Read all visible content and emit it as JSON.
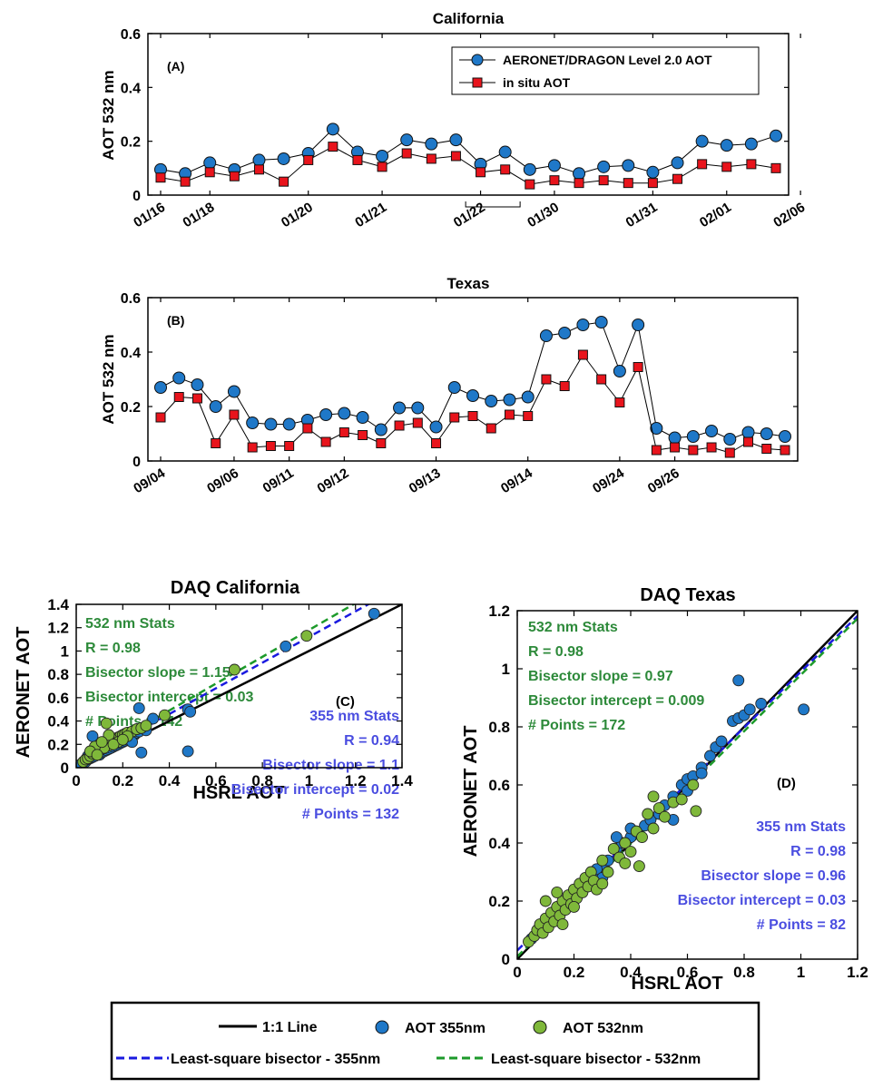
{
  "colors": {
    "aeronet": "#1f78c8",
    "insitu": "#e8141c",
    "ls355": "#1a1ae0",
    "ls532": "#1c9a2a",
    "green_pts": "#7fb83a",
    "stat532": "#2d8a3a",
    "stat355": "#4a4de0",
    "one_to_one": "#000000"
  },
  "legend_bottom": {
    "one_to_one": "1:1 Line",
    "aot355": "AOT 355nm",
    "aot532": "AOT 532nm",
    "ls355": "Least-square bisector - 355nm",
    "ls532": "Least-square bisector - 532nm"
  },
  "chart_data": [
    {
      "type": "line",
      "title": "California",
      "panel_label": "(A)",
      "ylabel": "AOT 532 nm",
      "ylim": [
        0,
        0.6
      ],
      "yticks": [
        "0",
        "0.2",
        "0.4",
        "0.6"
      ],
      "xtick_labels": [
        "01/16",
        "01/18",
        "01/20",
        "01/21",
        "01/22",
        "01/30",
        "01/31",
        "02/01",
        "02/06"
      ],
      "xtick_index": [
        0,
        2,
        6,
        9,
        13,
        16,
        20,
        23,
        26
      ],
      "legend": [
        "AERONET/DRAGON Level 2.0 AOT",
        "in situ AOT"
      ],
      "series": [
        {
          "name": "AERONET/DRAGON Level 2.0 AOT",
          "marker": "circle",
          "values": [
            0.095,
            0.08,
            0.12,
            0.095,
            0.13,
            0.135,
            0.155,
            0.245,
            0.16,
            0.145,
            0.205,
            0.19,
            0.205,
            0.115,
            0.16,
            0.095,
            0.11,
            0.08,
            0.105,
            0.11,
            0.085,
            0.12,
            0.2,
            0.185,
            0.19,
            0.22
          ]
        },
        {
          "name": "in situ AOT",
          "marker": "square",
          "values": [
            0.065,
            0.05,
            0.085,
            0.07,
            0.095,
            0.05,
            0.13,
            0.18,
            0.13,
            0.105,
            0.155,
            0.135,
            0.145,
            0.085,
            0.095,
            0.04,
            0.055,
            0.045,
            0.055,
            0.045,
            0.045,
            0.06,
            0.115,
            0.105,
            0.115,
            0.1
          ]
        }
      ]
    },
    {
      "type": "line",
      "title": "Texas",
      "panel_label": "(B)",
      "ylabel": "AOT 532 nm",
      "ylim": [
        0,
        0.6
      ],
      "yticks": [
        "0",
        "0.2",
        "0.4",
        "0.6"
      ],
      "xtick_labels": [
        "09/04",
        "09/06",
        "09/11",
        "09/12",
        "09/13",
        "09/14",
        "09/24",
        "09/26"
      ],
      "xtick_index": [
        0,
        4,
        7,
        10,
        15,
        20,
        25,
        28
      ],
      "series": [
        {
          "name": "AERONET/DRAGON Level 2.0 AOT",
          "marker": "circle",
          "values": [
            0.27,
            0.305,
            0.28,
            0.2,
            0.255,
            0.14,
            0.135,
            0.135,
            0.15,
            0.17,
            0.175,
            0.16,
            0.115,
            0.195,
            0.195,
            0.125,
            0.27,
            0.24,
            0.22,
            0.225,
            0.235,
            0.46,
            0.47,
            0.5,
            0.51,
            0.33,
            0.5,
            0.12,
            0.085,
            0.09,
            0.11,
            0.08,
            0.105,
            0.1,
            0.09
          ]
        },
        {
          "name": "in situ AOT",
          "marker": "square",
          "values": [
            0.16,
            0.235,
            0.23,
            0.065,
            0.17,
            0.05,
            0.055,
            0.055,
            0.12,
            0.07,
            0.105,
            0.095,
            0.065,
            0.13,
            0.14,
            0.065,
            0.16,
            0.165,
            0.12,
            0.17,
            0.165,
            0.3,
            0.275,
            0.39,
            0.3,
            0.215,
            0.345,
            0.04,
            0.05,
            0.04,
            0.05,
            0.03,
            0.07,
            0.045,
            0.04
          ]
        }
      ]
    },
    {
      "type": "scatter",
      "title": "DAQ California",
      "panel_label": "(C)",
      "xlabel": "HSRL AOT",
      "ylabel": "AERONET AOT",
      "xlim": [
        0,
        1.4
      ],
      "ylim": [
        0,
        1.4
      ],
      "xticks": [
        "0",
        "0.2",
        "0.4",
        "0.6",
        "0.8",
        "1",
        "1.2",
        "1.4"
      ],
      "yticks": [
        "0",
        "0.2",
        "0.4",
        "0.6",
        "0.8",
        "1",
        "1.2",
        "1.4"
      ],
      "stats532": [
        "532 nm Stats",
        "R = 0.98",
        "Bisector slope = 1.15",
        "Bisector intercept = 0.03",
        "# Points = 142"
      ],
      "stats355": [
        "355 nm Stats",
        "R = 0.94",
        "Bisector slope = 1.1",
        "Bisector intercept = 0.02",
        "# Points = 132"
      ],
      "lines": {
        "ls355": [
          1.1,
          0.02
        ],
        "ls532": [
          1.15,
          0.03
        ]
      },
      "series": [
        {
          "name": "AOT 355nm",
          "points": [
            [
              0.02,
              0.03
            ],
            [
              0.04,
              0.05
            ],
            [
              0.05,
              0.07
            ],
            [
              0.06,
              0.08
            ],
            [
              0.07,
              0.09
            ],
            [
              0.08,
              0.1
            ],
            [
              0.09,
              0.12
            ],
            [
              0.1,
              0.11
            ],
            [
              0.11,
              0.13
            ],
            [
              0.12,
              0.14
            ],
            [
              0.13,
              0.15
            ],
            [
              0.14,
              0.16
            ],
            [
              0.15,
              0.17
            ],
            [
              0.16,
              0.18
            ],
            [
              0.17,
              0.19
            ],
            [
              0.18,
              0.2
            ],
            [
              0.19,
              0.21
            ],
            [
              0.2,
              0.22
            ],
            [
              0.21,
              0.23
            ],
            [
              0.22,
              0.24
            ],
            [
              0.23,
              0.26
            ],
            [
              0.24,
              0.27
            ],
            [
              0.25,
              0.28
            ],
            [
              0.26,
              0.3
            ],
            [
              0.27,
              0.31
            ],
            [
              0.3,
              0.32
            ],
            [
              0.07,
              0.27
            ],
            [
              0.09,
              0.18
            ],
            [
              0.12,
              0.22
            ],
            [
              0.14,
              0.2
            ],
            [
              0.18,
              0.23
            ],
            [
              0.22,
              0.28
            ],
            [
              0.26,
              0.33
            ],
            [
              0.27,
              0.51
            ],
            [
              0.28,
              0.13
            ],
            [
              0.33,
              0.42
            ],
            [
              0.48,
              0.5
            ],
            [
              0.49,
              0.48
            ],
            [
              0.48,
              0.14
            ],
            [
              0.9,
              1.04
            ],
            [
              1.28,
              1.32
            ],
            [
              0.1,
              0.17
            ],
            [
              0.15,
              0.2
            ],
            [
              0.2,
              0.25
            ],
            [
              0.24,
              0.22
            ],
            [
              0.11,
              0.16
            ],
            [
              0.08,
              0.13
            ],
            [
              0.19,
              0.26
            ],
            [
              0.16,
              0.23
            ],
            [
              0.05,
              0.1
            ]
          ]
        },
        {
          "name": "AOT 532nm",
          "points": [
            [
              0.03,
              0.05
            ],
            [
              0.04,
              0.07
            ],
            [
              0.05,
              0.08
            ],
            [
              0.06,
              0.1
            ],
            [
              0.07,
              0.12
            ],
            [
              0.08,
              0.13
            ],
            [
              0.09,
              0.15
            ],
            [
              0.1,
              0.16
            ],
            [
              0.11,
              0.18
            ],
            [
              0.12,
              0.2
            ],
            [
              0.13,
              0.21
            ],
            [
              0.14,
              0.19
            ],
            [
              0.15,
              0.22
            ],
            [
              0.16,
              0.24
            ],
            [
              0.17,
              0.25
            ],
            [
              0.18,
              0.26
            ],
            [
              0.19,
              0.27
            ],
            [
              0.2,
              0.28
            ],
            [
              0.21,
              0.29
            ],
            [
              0.22,
              0.3
            ],
            [
              0.24,
              0.31
            ],
            [
              0.26,
              0.33
            ],
            [
              0.28,
              0.34
            ],
            [
              0.3,
              0.36
            ],
            [
              0.13,
              0.38
            ],
            [
              0.38,
              0.45
            ],
            [
              0.68,
              0.84
            ],
            [
              0.99,
              1.13
            ],
            [
              0.1,
              0.2
            ],
            [
              0.12,
              0.17
            ],
            [
              0.15,
              0.25
            ],
            [
              0.08,
              0.18
            ],
            [
              0.06,
              0.14
            ],
            [
              0.18,
              0.22
            ],
            [
              0.22,
              0.27
            ],
            [
              0.14,
              0.28
            ],
            [
              0.09,
              0.11
            ],
            [
              0.11,
              0.22
            ],
            [
              0.16,
              0.2
            ],
            [
              0.2,
              0.24
            ]
          ]
        }
      ]
    },
    {
      "type": "scatter",
      "title": "DAQ Texas",
      "panel_label": "(D)",
      "xlabel": "HSRL AOT",
      "ylabel": "AERONET AOT",
      "xlim": [
        0,
        1.2
      ],
      "ylim": [
        0,
        1.2
      ],
      "xticks": [
        "0",
        "0.2",
        "0.4",
        "0.6",
        "0.8",
        "1",
        "1.2"
      ],
      "yticks": [
        "0",
        "0.2",
        "0.4",
        "0.6",
        "0.8",
        "1",
        "1.2"
      ],
      "stats532": [
        "532 nm Stats",
        "R = 0.98",
        "Bisector slope = 0.97",
        "Bisector intercept = 0.009",
        "# Points = 172"
      ],
      "stats355": [
        "355 nm Stats",
        "R = 0.98",
        "Bisector slope = 0.96",
        "Bisector intercept = 0.03",
        "# Points = 82"
      ],
      "lines": {
        "ls355": [
          0.96,
          0.03
        ],
        "ls532": [
          0.97,
          0.009
        ]
      },
      "series": [
        {
          "name": "AOT 355nm",
          "points": [
            [
              0.05,
              0.07
            ],
            [
              0.08,
              0.1
            ],
            [
              0.1,
              0.12
            ],
            [
              0.12,
              0.14
            ],
            [
              0.15,
              0.17
            ],
            [
              0.18,
              0.2
            ],
            [
              0.2,
              0.22
            ],
            [
              0.22,
              0.24
            ],
            [
              0.25,
              0.27
            ],
            [
              0.27,
              0.3
            ],
            [
              0.3,
              0.32
            ],
            [
              0.32,
              0.34
            ],
            [
              0.35,
              0.38
            ],
            [
              0.37,
              0.4
            ],
            [
              0.4,
              0.42
            ],
            [
              0.42,
              0.44
            ],
            [
              0.45,
              0.46
            ],
            [
              0.47,
              0.48
            ],
            [
              0.5,
              0.5
            ],
            [
              0.52,
              0.53
            ],
            [
              0.55,
              0.56
            ],
            [
              0.58,
              0.6
            ],
            [
              0.6,
              0.62
            ],
            [
              0.62,
              0.63
            ],
            [
              0.65,
              0.66
            ],
            [
              0.68,
              0.7
            ],
            [
              0.7,
              0.73
            ],
            [
              0.72,
              0.75
            ],
            [
              0.76,
              0.82
            ],
            [
              0.78,
              0.83
            ],
            [
              0.8,
              0.84
            ],
            [
              0.82,
              0.86
            ],
            [
              0.86,
              0.88
            ],
            [
              0.78,
              0.96
            ],
            [
              1.01,
              0.86
            ],
            [
              0.55,
              0.48
            ],
            [
              0.6,
              0.58
            ],
            [
              0.65,
              0.64
            ],
            [
              0.4,
              0.45
            ],
            [
              0.35,
              0.42
            ],
            [
              0.28,
              0.31
            ],
            [
              0.3,
              0.28
            ]
          ]
        },
        {
          "name": "AOT 532nm",
          "points": [
            [
              0.04,
              0.06
            ],
            [
              0.06,
              0.08
            ],
            [
              0.07,
              0.1
            ],
            [
              0.08,
              0.12
            ],
            [
              0.09,
              0.09
            ],
            [
              0.1,
              0.14
            ],
            [
              0.11,
              0.11
            ],
            [
              0.12,
              0.16
            ],
            [
              0.13,
              0.13
            ],
            [
              0.14,
              0.18
            ],
            [
              0.15,
              0.15
            ],
            [
              0.16,
              0.2
            ],
            [
              0.17,
              0.17
            ],
            [
              0.18,
              0.22
            ],
            [
              0.19,
              0.19
            ],
            [
              0.2,
              0.24
            ],
            [
              0.21,
              0.21
            ],
            [
              0.22,
              0.26
            ],
            [
              0.23,
              0.23
            ],
            [
              0.24,
              0.28
            ],
            [
              0.25,
              0.25
            ],
            [
              0.26,
              0.3
            ],
            [
              0.27,
              0.27
            ],
            [
              0.28,
              0.24
            ],
            [
              0.3,
              0.34
            ],
            [
              0.32,
              0.3
            ],
            [
              0.34,
              0.38
            ],
            [
              0.36,
              0.35
            ],
            [
              0.38,
              0.4
            ],
            [
              0.4,
              0.37
            ],
            [
              0.42,
              0.44
            ],
            [
              0.44,
              0.42
            ],
            [
              0.46,
              0.5
            ],
            [
              0.48,
              0.45
            ],
            [
              0.5,
              0.52
            ],
            [
              0.52,
              0.49
            ],
            [
              0.55,
              0.54
            ],
            [
              0.58,
              0.55
            ],
            [
              0.62,
              0.6
            ],
            [
              0.63,
              0.51
            ],
            [
              0.48,
              0.56
            ],
            [
              0.43,
              0.32
            ],
            [
              0.38,
              0.33
            ],
            [
              0.1,
              0.2
            ],
            [
              0.14,
              0.23
            ],
            [
              0.2,
              0.18
            ],
            [
              0.3,
              0.26
            ],
            [
              0.16,
              0.12
            ]
          ]
        }
      ]
    }
  ]
}
